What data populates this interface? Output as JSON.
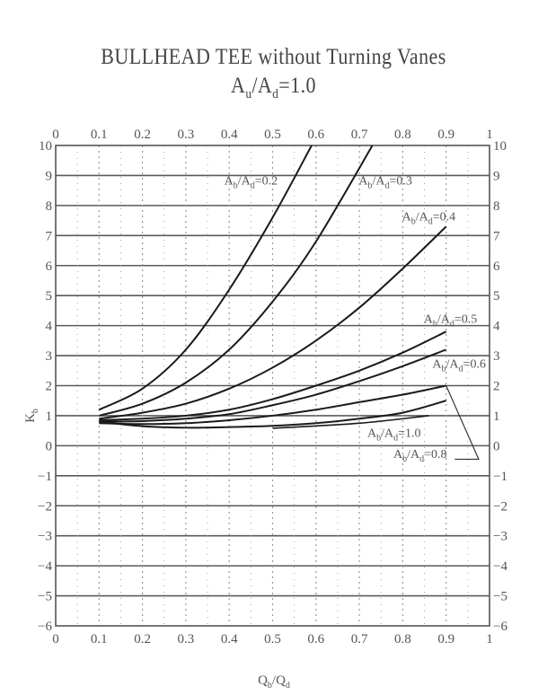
{
  "title": {
    "line1": "BULLHEAD TEE without Turning Vanes",
    "line2_main": "A",
    "line2_sub_u": "u",
    "line2_slash": "/A",
    "line2_sub_d": "d",
    "line2_tail": "=1.0"
  },
  "axes": {
    "xlabel_main": "Q",
    "xlabel_sub_b": "b",
    "xlabel_slash": "/Q",
    "xlabel_sub_d": "d",
    "ylabel_main": "K",
    "ylabel_sub": "b"
  },
  "chart_data": {
    "type": "line",
    "title": "BULLHEAD TEE without Turning Vanes, Au/Ad=1.0",
    "xlabel": "Qb/Qd",
    "ylabel": "Kb",
    "xlim": [
      0,
      1
    ],
    "ylim": [
      -6,
      10
    ],
    "x_ticks": [
      "0",
      "0.1",
      "0.2",
      "0.3",
      "0.4",
      "0.5",
      "0.6",
      "0.7",
      "0.8",
      "0.9",
      "1"
    ],
    "y_ticks": [
      "10",
      "9",
      "8",
      "7",
      "6",
      "5",
      "4",
      "3",
      "2",
      "1",
      "0",
      "-1",
      "-2",
      "-3",
      "-4",
      "-5",
      "-6"
    ],
    "grid": "horizontal solid at integers; vertical dotted",
    "legend_position": "inline labels on curves",
    "series": [
      {
        "name": "Ab/Ad=0.2",
        "x": [
          0.1,
          0.2,
          0.3,
          0.4,
          0.5,
          0.59
        ],
        "values": [
          1.2,
          1.9,
          3.2,
          5.2,
          7.6,
          10.0
        ]
      },
      {
        "name": "Ab/Ad=0.3",
        "x": [
          0.1,
          0.2,
          0.3,
          0.4,
          0.5,
          0.6,
          0.73
        ],
        "values": [
          1.0,
          1.4,
          2.1,
          3.2,
          4.8,
          6.8,
          10.0
        ]
      },
      {
        "name": "Ab/Ad=0.4",
        "x": [
          0.1,
          0.2,
          0.3,
          0.4,
          0.5,
          0.6,
          0.7,
          0.8,
          0.9
        ],
        "values": [
          0.9,
          1.1,
          1.4,
          1.9,
          2.6,
          3.5,
          4.6,
          5.9,
          7.3
        ]
      },
      {
        "name": "Ab/Ad=0.5",
        "x": [
          0.1,
          0.2,
          0.3,
          0.4,
          0.5,
          0.6,
          0.7,
          0.8,
          0.9
        ],
        "values": [
          0.85,
          0.9,
          1.0,
          1.2,
          1.55,
          2.0,
          2.5,
          3.1,
          3.8
        ]
      },
      {
        "name": "Ab/Ad=0.6",
        "x": [
          0.1,
          0.2,
          0.3,
          0.4,
          0.5,
          0.6,
          0.7,
          0.8,
          0.9
        ],
        "values": [
          0.8,
          0.82,
          0.9,
          1.05,
          1.35,
          1.7,
          2.15,
          2.65,
          3.2
        ]
      },
      {
        "name": "Ab/Ad=0.8",
        "x": [
          0.1,
          0.2,
          0.3,
          0.4,
          0.5,
          0.6,
          0.7,
          0.8,
          0.9
        ],
        "values": [
          0.75,
          0.72,
          0.75,
          0.85,
          1.0,
          1.2,
          1.45,
          1.7,
          2.0
        ]
      },
      {
        "name": "Ab/Ad=1.0",
        "x": [
          0.1,
          0.2,
          0.3,
          0.4,
          0.5,
          0.6,
          0.7,
          0.8,
          0.9
        ],
        "values": [
          0.8,
          0.65,
          0.6,
          0.62,
          0.66,
          0.75,
          0.9,
          1.1,
          1.5
        ]
      }
    ],
    "annotations": [
      {
        "text": "Ab/Ad=0.2",
        "x": 0.45,
        "y": 8.7
      },
      {
        "text": "Ab/Ad=0.3",
        "x": 0.76,
        "y": 8.7
      },
      {
        "text": "Ab/Ad=0.4",
        "x": 0.86,
        "y": 7.5
      },
      {
        "text": "Ab/Ad=0.5",
        "x": 0.91,
        "y": 4.1
      },
      {
        "text": "Ab/Ad=0.6",
        "x": 0.93,
        "y": 2.6
      },
      {
        "text": "Ab/Ad=1.0",
        "x": 0.78,
        "y": 0.3
      },
      {
        "text": "Ab/Ad=0.8",
        "x": 0.84,
        "y": -0.4
      }
    ]
  },
  "curve_labels": [
    {
      "main": "A",
      "sub1": "b",
      "mid": "/A",
      "sub2": "d",
      "tail": "=0.2"
    },
    {
      "main": "A",
      "sub1": "b",
      "mid": "/A",
      "sub2": "d",
      "tail": "=0.3"
    },
    {
      "main": "A",
      "sub1": "b",
      "mid": "/A",
      "sub2": "d",
      "tail": "=0.4"
    },
    {
      "main": "A",
      "sub1": "b",
      "mid": "/A",
      "sub2": "d",
      "tail": "=0.5"
    },
    {
      "main": "A",
      "sub1": "b",
      "mid": "/A",
      "sub2": "d",
      "tail": "=0.6"
    },
    {
      "main": "A",
      "sub1": "b",
      "mid": "/A",
      "sub2": "d",
      "tail": "=1.0"
    },
    {
      "main": "A",
      "sub1": "b",
      "mid": "/A",
      "sub2": "d",
      "tail": "=0.8"
    }
  ],
  "colors": {
    "curve": "#1a1a1a",
    "grid": "#5a5a5a",
    "text": "#555555"
  }
}
